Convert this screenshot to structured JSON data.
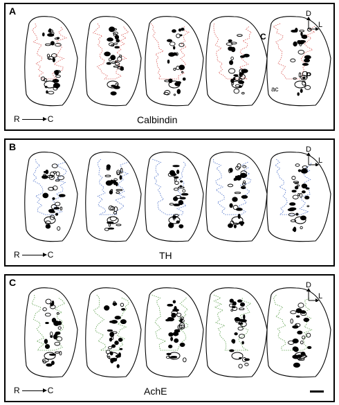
{
  "panels": [
    {
      "letter": "A",
      "stain": "Calbindin",
      "color": "#d9534f"
    },
    {
      "letter": "B",
      "stain": "TH",
      "color": "#4a6fc9"
    },
    {
      "letter": "C",
      "stain": "AchE",
      "color": "#5a9e4a"
    }
  ],
  "orientation": {
    "dorsal": "D",
    "lateral": "L"
  },
  "axis": {
    "rostral": "R",
    "caudal": "C"
  },
  "region_labels": {
    "caudate": "C",
    "putamen": "P",
    "ac": "ac"
  }
}
